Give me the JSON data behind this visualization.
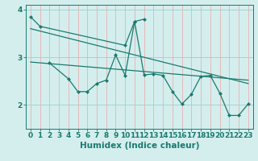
{
  "xlabel": "Humidex (Indice chaleur)",
  "bg_color": "#d4eeee",
  "line_color": "#1a7a6e",
  "vgrid_color": "#e8b0b0",
  "hgrid_color": "#9ecece",
  "xlim": [
    -0.5,
    23.5
  ],
  "ylim": [
    1.5,
    4.1
  ],
  "yticks": [
    2,
    3,
    4
  ],
  "xticks": [
    0,
    1,
    2,
    3,
    4,
    5,
    6,
    7,
    8,
    9,
    10,
    11,
    12,
    13,
    14,
    15,
    16,
    17,
    18,
    19,
    20,
    21,
    22,
    23
  ],
  "tick_fontsize": 6.5,
  "label_fontsize": 7.5,
  "series_upper": {
    "x": [
      0,
      1,
      10,
      11,
      12
    ],
    "y": [
      3.85,
      3.65,
      3.25,
      3.75,
      3.8
    ]
  },
  "series_lower": {
    "x": [
      2,
      4,
      5,
      6,
      7,
      8,
      9,
      10,
      11,
      12,
      13,
      14,
      15,
      16,
      17,
      18,
      19,
      20,
      21,
      22,
      23
    ],
    "y": [
      2.88,
      2.55,
      2.28,
      2.28,
      2.45,
      2.52,
      3.05,
      2.62,
      3.75,
      2.63,
      2.65,
      2.62,
      2.28,
      2.02,
      2.22,
      2.6,
      2.62,
      2.25,
      1.78,
      1.78,
      2.02
    ]
  },
  "trend1": {
    "x": [
      0,
      23
    ],
    "y": [
      3.6,
      2.45
    ]
  },
  "trend2": {
    "x": [
      0,
      23
    ],
    "y": [
      2.9,
      2.52
    ]
  }
}
